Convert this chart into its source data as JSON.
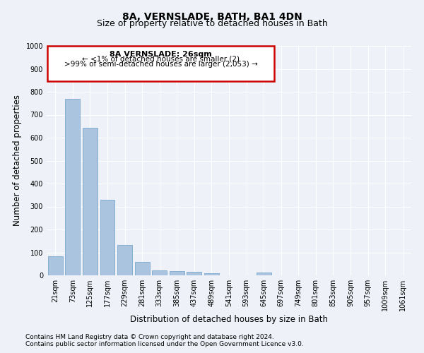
{
  "title": "8A, VERNSLADE, BATH, BA1 4DN",
  "subtitle": "Size of property relative to detached houses in Bath",
  "xlabel": "Distribution of detached houses by size in Bath",
  "ylabel": "Number of detached properties",
  "categories": [
    "21sqm",
    "73sqm",
    "125sqm",
    "177sqm",
    "229sqm",
    "281sqm",
    "333sqm",
    "385sqm",
    "437sqm",
    "489sqm",
    "541sqm",
    "593sqm",
    "645sqm",
    "697sqm",
    "749sqm",
    "801sqm",
    "853sqm",
    "905sqm",
    "957sqm",
    "1009sqm",
    "1061sqm"
  ],
  "values": [
    83,
    770,
    643,
    330,
    133,
    60,
    23,
    20,
    15,
    10,
    0,
    0,
    12,
    0,
    0,
    0,
    0,
    0,
    0,
    0,
    0
  ],
  "bar_color": "#aac4df",
  "bar_edge_color": "#6a9fc8",
  "ylim": [
    0,
    1000
  ],
  "yticks": [
    0,
    100,
    200,
    300,
    400,
    500,
    600,
    700,
    800,
    900,
    1000
  ],
  "annotation_title": "8A VERNSLADE: 26sqm",
  "annotation_line1": "← <1% of detached houses are smaller (2)",
  "annotation_line2": ">99% of semi-detached houses are larger (2,053) →",
  "annotation_box_color": "#ffffff",
  "annotation_border_color": "#cc0000",
  "footer_line1": "Contains HM Land Registry data © Crown copyright and database right 2024.",
  "footer_line2": "Contains public sector information licensed under the Open Government Licence v3.0.",
  "bg_color": "#eef2f8",
  "grid_color": "#ffffff",
  "title_fontsize": 10,
  "subtitle_fontsize": 9,
  "axis_label_fontsize": 8.5,
  "tick_fontsize": 7,
  "footer_fontsize": 6.5,
  "ann_fontsize": 8
}
